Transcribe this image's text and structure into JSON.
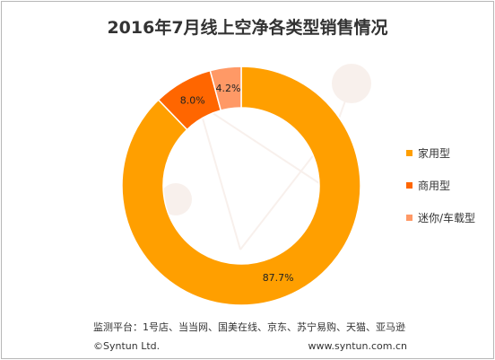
{
  "title": "2016年7月线上空净各类型销售情况",
  "chart_data": {
    "type": "pie",
    "donut": true,
    "title": "2016年7月线上空净各类型销售情况",
    "categories": [
      "家用型",
      "商用型",
      "迷你/车载型"
    ],
    "values": [
      87.7,
      8.0,
      4.2
    ],
    "labels": [
      "87.7%",
      "8.0%",
      "4.2%"
    ],
    "colors": [
      "#FF9F00",
      "#FF6600",
      "#FF9966"
    ],
    "legend_position": "right"
  },
  "footer": {
    "platforms": "监测平台：1号店、当当网、国美在线、京东、苏宁易购、天猫、亚马逊",
    "copyright": "©Syntun Ltd.",
    "website": "www.syntun.com.cn"
  }
}
